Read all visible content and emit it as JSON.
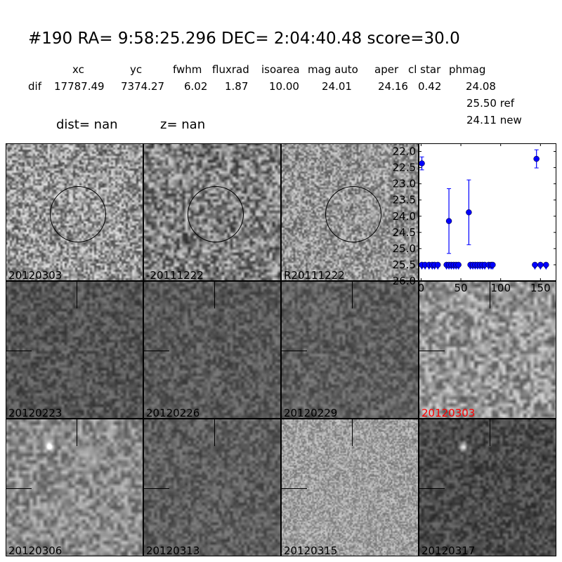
{
  "header": {
    "title": "#190   RA= 9:58:25.296 DEC= 2:04:40.48      score=30.0",
    "columns": [
      "xc",
      "yc",
      "fwhm",
      "fluxrad",
      "isoarea",
      "mag auto",
      "aper",
      "cl star",
      "phmag"
    ],
    "row_label": "dif",
    "row_values": [
      "17787.49",
      "7374.27",
      "6.02",
      "1.87",
      "10.00",
      "24.01",
      "24.16",
      "0.42",
      "24.08"
    ],
    "ref": "25.50 ref",
    "new": "24.11 new",
    "dist": "dist=   nan",
    "z": "z=   nan"
  },
  "panels": [
    {
      "label": "20120303"
    },
    {
      "label": "-20111222"
    },
    {
      "label": "R20111222"
    },
    {
      "label": "20120223"
    },
    {
      "label": "20120226"
    },
    {
      "label": "20120229"
    },
    {
      "label": "20120303",
      "color": "#ff0000"
    },
    {
      "label": "20120306"
    },
    {
      "label": "20120313"
    },
    {
      "label": "20120315"
    },
    {
      "label": "20120317"
    }
  ],
  "chart_data": {
    "type": "scatter",
    "xlim": [
      -3,
      170
    ],
    "ylim": [
      26.0,
      21.75
    ],
    "y_inverted": true,
    "xticks": [
      "0",
      "50",
      "100",
      "150"
    ],
    "yticks": [
      "22.0",
      "22.5",
      "23.0",
      "23.5",
      "24.0",
      "24.5",
      "25.0",
      "25.5",
      "26.0"
    ],
    "color": "#0000ff",
    "detections": [
      {
        "x": 1,
        "y": 22.37,
        "err": 0.2
      },
      {
        "x": 35,
        "y": 24.15,
        "err": 1.0
      },
      {
        "x": 60,
        "y": 23.88,
        "err": 1.0
      },
      {
        "x": 145,
        "y": 22.23,
        "err": 0.28
      }
    ],
    "upper_limits": {
      "y": 25.5,
      "x": [
        1,
        5,
        10,
        14,
        17,
        21,
        32,
        35,
        38,
        41,
        44,
        47,
        62,
        65,
        68,
        71,
        74,
        77,
        80,
        85,
        88,
        90,
        143,
        150,
        157
      ]
    }
  }
}
